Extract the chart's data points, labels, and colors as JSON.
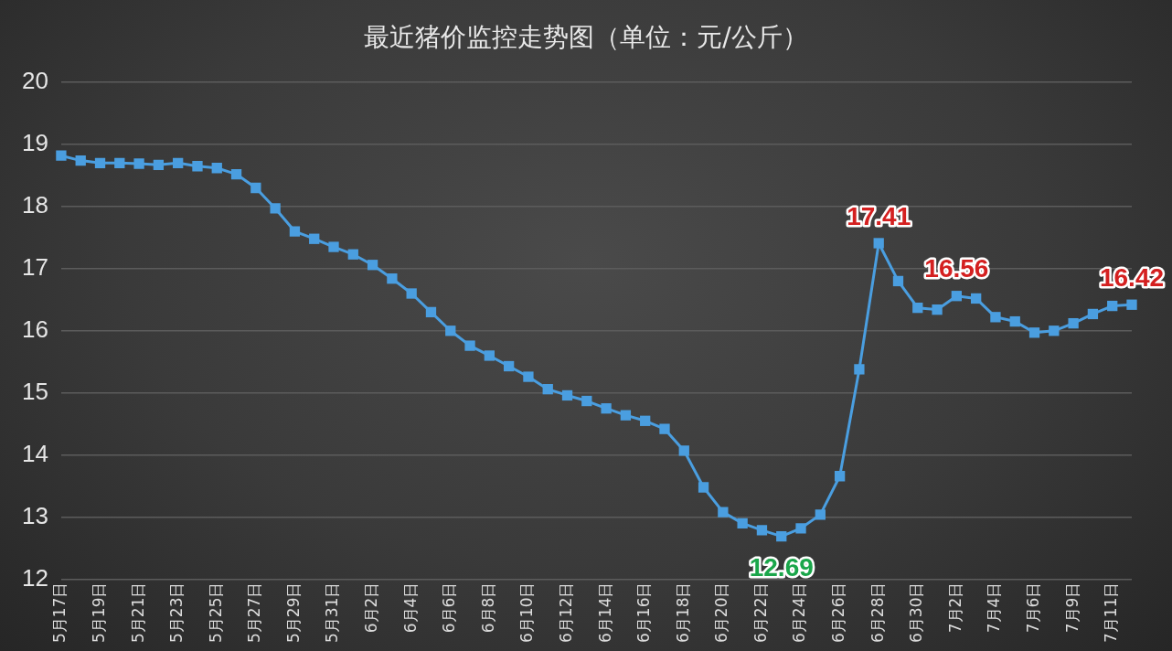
{
  "chart_data": {
    "type": "line",
    "title": "最近猪价监控走势图（单位：元/公斤）",
    "categories": [
      "5月17日",
      null,
      "5月19日",
      null,
      "5月21日",
      null,
      "5月23日",
      null,
      "5月25日",
      null,
      "5月27日",
      null,
      "5月29日",
      null,
      "5月31日",
      null,
      "6月2日",
      null,
      "6月4日",
      null,
      "6月6日",
      null,
      "6月8日",
      null,
      "6月10日",
      null,
      "6月12日",
      null,
      "6月14日",
      null,
      "6月16日",
      null,
      "6月18日",
      null,
      "6月20日",
      null,
      "6月22日",
      null,
      "6月24日",
      null,
      "6月26日",
      null,
      "6月28日",
      null,
      "6月30日",
      null,
      "7月2日",
      null,
      "7月4日",
      null,
      "7月6日",
      null,
      "7月9日",
      null,
      "7月11日",
      null
    ],
    "series": [
      {
        "color": "#4a9ee0",
        "values": [
          18.82,
          18.74,
          18.7,
          18.7,
          18.69,
          18.67,
          18.7,
          18.65,
          18.62,
          18.52,
          18.3,
          17.97,
          17.6,
          17.48,
          17.35,
          17.23,
          17.06,
          16.84,
          16.6,
          16.3,
          16.0,
          15.76,
          15.6,
          15.43,
          15.26,
          15.06,
          14.96,
          14.87,
          14.75,
          14.64,
          14.55,
          14.42,
          14.07,
          13.48,
          13.08,
          12.9,
          12.79,
          12.69,
          12.82,
          13.04,
          13.66,
          15.38,
          17.41,
          16.8,
          16.37,
          16.34,
          16.56,
          16.52,
          16.22,
          16.15,
          15.97,
          16.0,
          16.12,
          16.27,
          16.4,
          16.42
        ],
        "value_labels": [
          null,
          null,
          null,
          null,
          null,
          null,
          null,
          null,
          null,
          null,
          null,
          null,
          null,
          null,
          null,
          null,
          null,
          null,
          null,
          null,
          null,
          null,
          null,
          null,
          null,
          null,
          null,
          null,
          null,
          null,
          null,
          null,
          null,
          null,
          null,
          null,
          null,
          "12.69",
          null,
          null,
          null,
          null,
          "17.41",
          null,
          null,
          null,
          "16.56",
          null,
          null,
          null,
          null,
          null,
          null,
          null,
          null,
          "16.42"
        ]
      }
    ],
    "ylim": [
      12,
      20
    ],
    "yticks": [
      12,
      13,
      14,
      15,
      16,
      17,
      18,
      19,
      20
    ],
    "grid": "y",
    "legend": false,
    "marker": "square",
    "line_style": "solid"
  }
}
